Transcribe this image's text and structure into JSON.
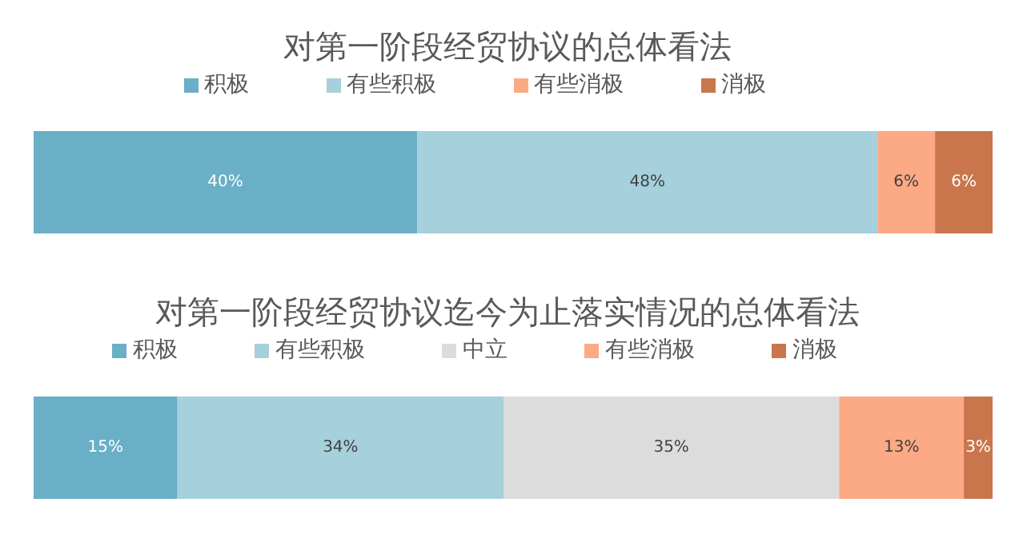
{
  "chart_data": [
    {
      "type": "bar",
      "orientation": "horizontal",
      "stacked": true,
      "title": "对第一阶段经贸协议的总体看法",
      "categories": [
        null
      ],
      "legend": "top",
      "tick_labels": false,
      "series": [
        {
          "name": "积极",
          "color": "#69afc6",
          "values": [
            40
          ],
          "value_labels": [
            "40%"
          ]
        },
        {
          "name": "有些积极",
          "color": "#a5d0dc",
          "values": [
            48
          ],
          "value_labels": [
            "48%"
          ]
        },
        {
          "name": "有些消极",
          "color": "#fca985",
          "values": [
            6
          ],
          "value_labels": [
            "6%"
          ]
        },
        {
          "name": "消极",
          "color": "#c9764c",
          "values": [
            6
          ],
          "value_labels": [
            "6%"
          ]
        }
      ]
    },
    {
      "type": "bar",
      "orientation": "horizontal",
      "stacked": true,
      "title": "对第一阶段经贸协议迄今为止落实情况的总体看法",
      "categories": [
        null
      ],
      "legend": "top",
      "tick_labels": false,
      "series": [
        {
          "name": "积极",
          "color": "#69afc6",
          "values": [
            15
          ],
          "value_labels": [
            "15%"
          ]
        },
        {
          "name": "有些积极",
          "color": "#a5d0dc",
          "values": [
            34
          ],
          "value_labels": [
            "34%"
          ]
        },
        {
          "name": "中立",
          "color": "#dcdcdc",
          "values": [
            35
          ],
          "value_labels": [
            "35%"
          ]
        },
        {
          "name": "有些消极",
          "color": "#fca985",
          "values": [
            13
          ],
          "value_labels": [
            "13%"
          ]
        },
        {
          "name": "消极",
          "color": "#c9764c",
          "values": [
            3
          ],
          "value_labels": [
            "3%"
          ]
        }
      ]
    }
  ]
}
